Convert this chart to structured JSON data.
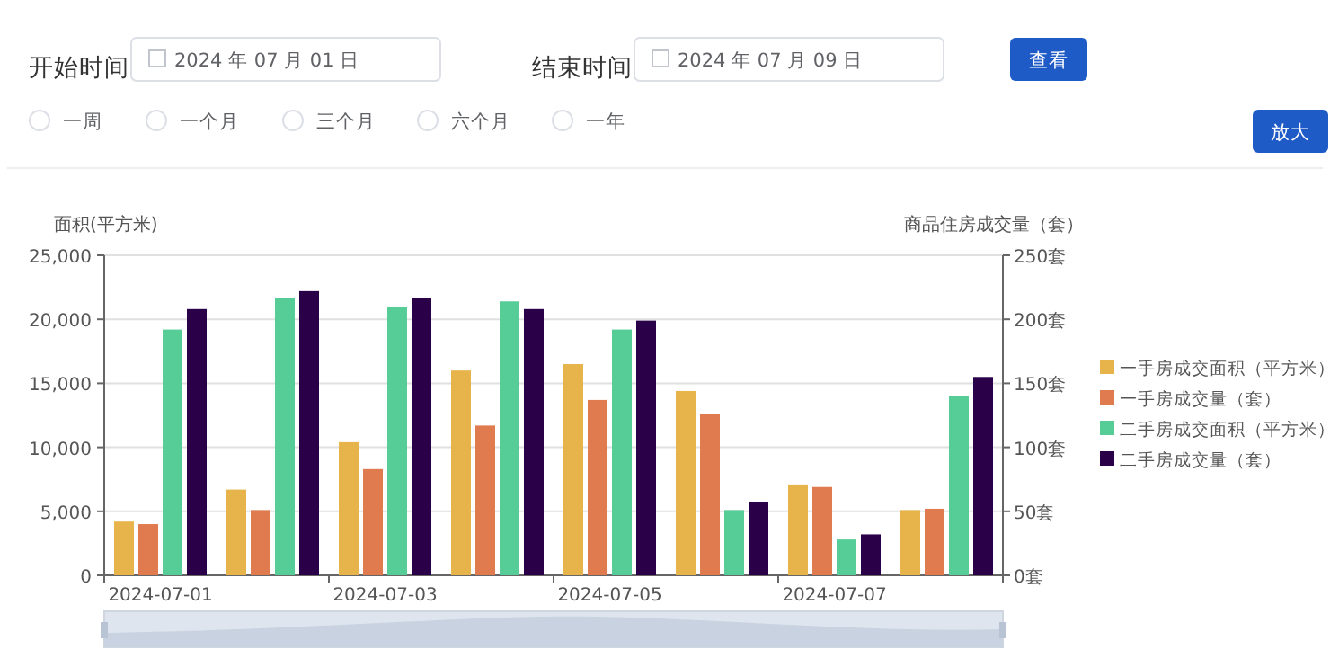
{
  "chart_data": {
    "type": "bar",
    "ylabel": "面积(平方米)",
    "y2label": "商品住房成交量（套）",
    "categories": [
      "2024-07-01",
      null,
      "2024-07-03",
      null,
      "2024-07-05",
      null,
      "2024-07-07",
      null
    ],
    "series": [
      {
        "name": "一手房成交面积（平方米）",
        "color": "#e6b44a",
        "values": [
          4200,
          6700,
          10400,
          16000,
          16500,
          14400,
          7100,
          5100
        ]
      },
      {
        "name": "一手房成交量（套）",
        "color": "#e07b4f",
        "axis": "y2",
        "values": [
          40,
          51,
          83,
          117,
          137,
          126,
          69,
          52
        ]
      },
      {
        "name": "二手房成交面积（平方米）",
        "color": "#56cc96",
        "values": [
          19200,
          21700,
          21000,
          21400,
          19200,
          5100,
          2800,
          14000
        ]
      },
      {
        "name": "二手房成交量（套）",
        "color": "#2a0048",
        "axis": "y2",
        "values": [
          208,
          222,
          217,
          208,
          199,
          57,
          32,
          155
        ]
      }
    ],
    "ylim": [
      0,
      25000
    ],
    "yticks": [
      0,
      {
        "value": 5000,
        "label": "5,000"
      },
      {
        "value": 10000,
        "label": "10,000"
      },
      {
        "value": 15000,
        "label": "15,000"
      },
      {
        "value": 20000,
        "label": "20,000"
      },
      {
        "value": 25000,
        "label": "25,000"
      }
    ],
    "y2lim": [
      0,
      250
    ],
    "y2ticks": [
      {
        "value": 0,
        "label": "0套"
      },
      {
        "value": 50,
        "label": "50套"
      },
      {
        "value": 100,
        "label": "100套"
      },
      {
        "value": 150,
        "label": "150套"
      },
      {
        "value": 200,
        "label": "200套"
      },
      {
        "value": 250,
        "label": "250套"
      }
    ],
    "grid": "y",
    "legend": "right",
    "annotations": [
      "开始时间",
      "2024 年 07 月 01 日",
      "结束时间",
      "2024 年 07 月 09 日",
      "查看",
      "一周",
      "一个月",
      "三个月",
      "六个月",
      "一年",
      "放大"
    ]
  }
}
